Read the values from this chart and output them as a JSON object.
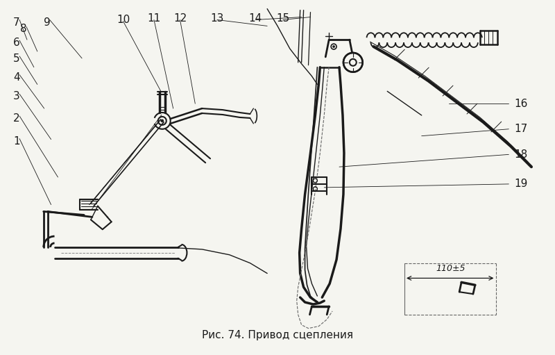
{
  "title": "Рис. 74. Привод сцепления",
  "title_fontsize": 11,
  "bg_color": "#f5f5f0",
  "line_color": "#1a1a1a",
  "fig_width": 8.0,
  "fig_height": 5.11,
  "measurement": "110±5"
}
